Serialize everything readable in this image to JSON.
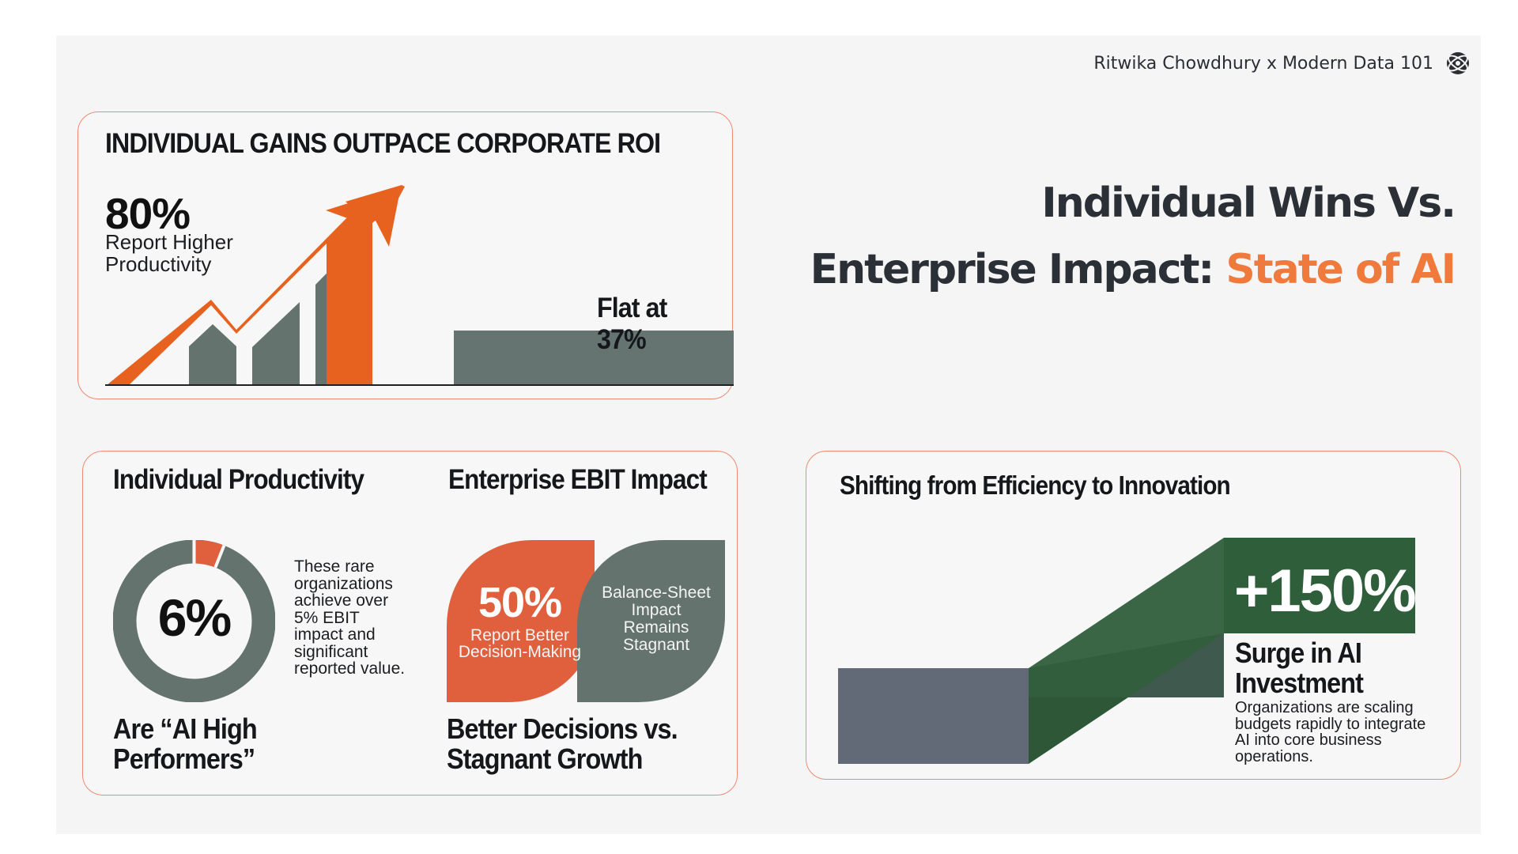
{
  "credit": {
    "text": "Ritwika Chowdhury x Modern Data 101",
    "icon": "globe-logo-icon"
  },
  "title": {
    "line1": "Individual Wins Vs.",
    "line2_prefix": "Enterprise Impact: ",
    "line2_accent": "State of AI",
    "accent_color": "#f07a3c"
  },
  "roi_card": {
    "heading": "INDIVIDUAL GAINS OUTPACE CORPORATE ROI",
    "big_value": "80%",
    "big_label": "Report Higher Productivity",
    "flat_label": "Flat at 37%",
    "colors": {
      "arrow": "#e8621f",
      "bars": "#65736e",
      "flat_bar": "#657470"
    }
  },
  "compare_card": {
    "left_heading": "Individual Productivity",
    "right_heading": "Enterprise EBIT Impact",
    "donut": {
      "value_label": "6%",
      "fraction": 0.06,
      "note": "These rare organizations achieve over 5% EBIT impact and significant reported value.",
      "colors": {
        "ring": "#65736e",
        "highlight": "#e0603e"
      }
    },
    "left_bottom": "Are “AI High Performers”",
    "leaf_orange": {
      "value": "50%",
      "label": "Report Better Decision-Making",
      "color": "#e0603e"
    },
    "leaf_gray": {
      "label": "Balance-Sheet Impact Remains Stagnant",
      "color": "#65736e"
    },
    "right_bottom": "Better Decisions vs. Stagnant Growth"
  },
  "invest_card": {
    "heading": "Shifting from Efficiency to Innovation",
    "value": "+150%",
    "subheading": "Surge in AI Investment",
    "note": "Organizations are scaling budgets rapidly to integrate AI into core business operations.",
    "colors": {
      "base": "#636a77",
      "green": "#2f5e3b",
      "green_dark": "#244a2e"
    }
  }
}
